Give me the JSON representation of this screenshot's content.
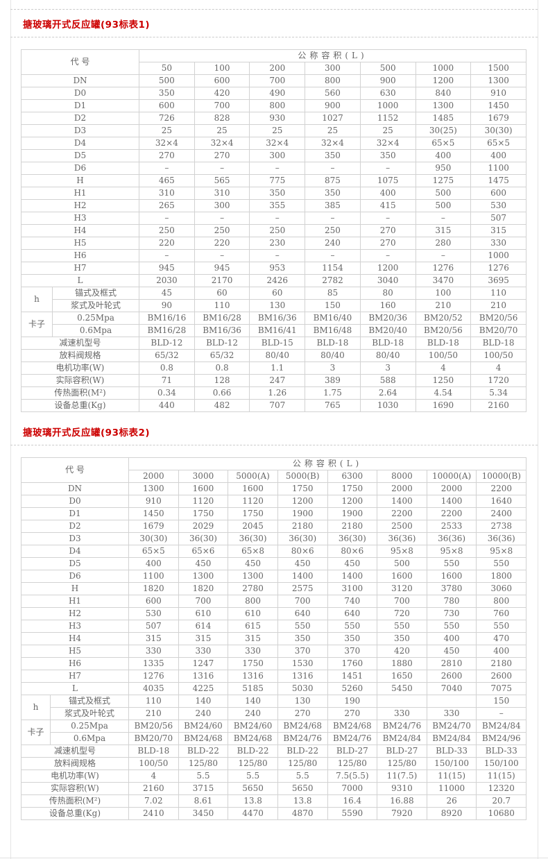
{
  "page": {
    "accent_red": "#cc0000",
    "grid_border": "#d2d2d2",
    "text_color": "#666666",
    "background": "#ffffff"
  },
  "tables": [
    {
      "title": "搪玻璃开式反应罐(93标表1)",
      "code_header": "代 号",
      "capacity_header": "公称容积(L)",
      "capacities": [
        "50",
        "100",
        "200",
        "300",
        "500",
        "1000",
        "1500"
      ],
      "rows": [
        {
          "label": "DN",
          "values": [
            "500",
            "600",
            "700",
            "800",
            "900",
            "1200",
            "1300"
          ]
        },
        {
          "label": "D0",
          "values": [
            "350",
            "420",
            "490",
            "560",
            "630",
            "840",
            "910"
          ]
        },
        {
          "label": "D1",
          "values": [
            "600",
            "700",
            "800",
            "900",
            "1000",
            "1300",
            "1450"
          ]
        },
        {
          "label": "D2",
          "values": [
            "726",
            "828",
            "930",
            "1027",
            "1152",
            "1485",
            "1679"
          ]
        },
        {
          "label": "D3",
          "values": [
            "25",
            "25",
            "25",
            "25",
            "25",
            "30(25)",
            "30(30)"
          ]
        },
        {
          "label": "D4",
          "values": [
            "32×4",
            "32×4",
            "32×4",
            "32×4",
            "32×4",
            "65×5",
            "65×5"
          ]
        },
        {
          "label": "D5",
          "values": [
            "270",
            "270",
            "300",
            "350",
            "350",
            "400",
            "400"
          ]
        },
        {
          "label": "D6",
          "values": [
            "–",
            "–",
            "–",
            "–",
            "–",
            "950",
            "1100"
          ]
        },
        {
          "label": "H",
          "values": [
            "465",
            "565",
            "775",
            "875",
            "1075",
            "1275",
            "1475"
          ]
        },
        {
          "label": "H1",
          "values": [
            "310",
            "310",
            "350",
            "350",
            "400",
            "500",
            "600"
          ]
        },
        {
          "label": "H2",
          "values": [
            "265",
            "300",
            "355",
            "385",
            "415",
            "500",
            "530"
          ]
        },
        {
          "label": "H3",
          "values": [
            "–",
            "–",
            "–",
            "–",
            "–",
            "–",
            "507"
          ]
        },
        {
          "label": "H4",
          "values": [
            "250",
            "250",
            "250",
            "250",
            "270",
            "315",
            "315"
          ]
        },
        {
          "label": "H5",
          "values": [
            "220",
            "220",
            "230",
            "240",
            "270",
            "280",
            "330"
          ]
        },
        {
          "label": "H6",
          "values": [
            "–",
            "–",
            "–",
            "–",
            "–",
            "–",
            "1000"
          ]
        },
        {
          "label": "H7",
          "values": [
            "945",
            "945",
            "953",
            "1154",
            "1200",
            "1276",
            "1276"
          ]
        },
        {
          "label": "L",
          "values": [
            "2030",
            "2170",
            "2426",
            "2782",
            "3040",
            "3470",
            "3695"
          ]
        },
        {
          "group": "h",
          "group_first": true,
          "label": "锚式及框式",
          "values": [
            "45",
            "60",
            "60",
            "85",
            "80",
            "100",
            "110"
          ]
        },
        {
          "group": "h",
          "label": "浆式及叶轮式",
          "values": [
            "90",
            "110",
            "130",
            "150",
            "160",
            "210",
            "210"
          ]
        },
        {
          "group": "卡子",
          "group_first": true,
          "label": "0.25Mpa",
          "values": [
            "BM16/16",
            "BM16/28",
            "BM16/36",
            "BM16/40",
            "BM20/36",
            "BM20/52",
            "BM20/56"
          ]
        },
        {
          "group": "卡子",
          "label": "0.6Mpa",
          "values": [
            "BM16/28",
            "BM16/36",
            "BM16/41",
            "BM16/48",
            "BM20/40",
            "BM20/56",
            "BM20/70"
          ]
        },
        {
          "label": "减速机型号",
          "values": [
            "BLD-12",
            "BLD-12",
            "BLD-15",
            "BLD-18",
            "BLD-18",
            "BLD-18",
            "BLD-18"
          ]
        },
        {
          "label": "放料阀规格",
          "values": [
            "65/32",
            "65/32",
            "80/40",
            "80/40",
            "80/40",
            "100/50",
            "100/50"
          ]
        },
        {
          "label": "电机功率(W)",
          "values": [
            "0.8",
            "0.8",
            "1.1",
            "3",
            "3",
            "4",
            "4"
          ]
        },
        {
          "label": "实际容积(W)",
          "values": [
            "71",
            "128",
            "247",
            "389",
            "588",
            "1250",
            "1720"
          ]
        },
        {
          "label": "传热面积(M²)",
          "values": [
            "0.34",
            "0.66",
            "1.26",
            "1.75",
            "2.64",
            "4.54",
            "5.34"
          ]
        },
        {
          "label": "设备总重(Kg)",
          "values": [
            "440",
            "482",
            "707",
            "765",
            "1030",
            "1690",
            "2160"
          ]
        }
      ]
    },
    {
      "title": "搪玻璃开式反应罐(93标表2)",
      "code_header": "代 号",
      "capacity_header": "公称容积(L)",
      "capacities": [
        "2000",
        "3000",
        "5000(A)",
        "5000(B)",
        "6300",
        "8000",
        "10000(A)",
        "10000(B)"
      ],
      "rows": [
        {
          "label": "DN",
          "values": [
            "1300",
            "1600",
            "1600",
            "1750",
            "1750",
            "2000",
            "2000",
            "2200"
          ]
        },
        {
          "label": "D0",
          "values": [
            "910",
            "1120",
            "1120",
            "1200",
            "1200",
            "1400",
            "1400",
            "1640"
          ]
        },
        {
          "label": "D1",
          "values": [
            "1450",
            "1750",
            "1750",
            "1900",
            "1900",
            "2200",
            "2200",
            "2400"
          ]
        },
        {
          "label": "D2",
          "values": [
            "1679",
            "2029",
            "2045",
            "2180",
            "2180",
            "2500",
            "2533",
            "2738"
          ]
        },
        {
          "label": "D3",
          "values": [
            "30(30)",
            "36(30)",
            "36(30)",
            "36(30)",
            "36(30)",
            "36(36)",
            "36(36)",
            "36(36)"
          ]
        },
        {
          "label": "D4",
          "values": [
            "65×5",
            "65×6",
            "65×8",
            "80×6",
            "80×6",
            "95×8",
            "95×8",
            "95×8"
          ]
        },
        {
          "label": "D5",
          "values": [
            "400",
            "450",
            "450",
            "450",
            "450",
            "500",
            "550",
            "550"
          ]
        },
        {
          "label": "D6",
          "values": [
            "1100",
            "1300",
            "1300",
            "1400",
            "1400",
            "1600",
            "1600",
            "1800"
          ]
        },
        {
          "label": "H",
          "values": [
            "1820",
            "1820",
            "2780",
            "2575",
            "3100",
            "3120",
            "3780",
            "3060"
          ]
        },
        {
          "label": "H1",
          "values": [
            "600",
            "700",
            "800",
            "700",
            "740",
            "700",
            "780",
            "800"
          ]
        },
        {
          "label": "H2",
          "values": [
            "530",
            "610",
            "610",
            "640",
            "640",
            "720",
            "730",
            "760"
          ]
        },
        {
          "label": "H3",
          "values": [
            "507",
            "614",
            "615",
            "550",
            "550",
            "550",
            "550",
            "550"
          ]
        },
        {
          "label": "H4",
          "values": [
            "315",
            "315",
            "315",
            "350",
            "350",
            "350",
            "400",
            "470"
          ]
        },
        {
          "label": "H5",
          "values": [
            "330",
            "330",
            "330",
            "370",
            "370",
            "420",
            "450",
            "400"
          ]
        },
        {
          "label": "H6",
          "values": [
            "1335",
            "1247",
            "1750",
            "1530",
            "1760",
            "1880",
            "2810",
            "2180"
          ]
        },
        {
          "label": "H7",
          "values": [
            "1276",
            "1316",
            "1316",
            "1316",
            "1451",
            "1650",
            "2600",
            "2600"
          ]
        },
        {
          "label": "L",
          "values": [
            "4035",
            "4225",
            "5185",
            "5030",
            "5260",
            "5450",
            "7040",
            "7075"
          ]
        },
        {
          "group": "h",
          "group_first": true,
          "label": "锚式及框式",
          "values": [
            "110",
            "140",
            "140",
            "130",
            "190",
            "",
            "",
            "150"
          ]
        },
        {
          "group": "h",
          "label": "浆式及叶轮式",
          "values": [
            "210",
            "240",
            "240",
            "270",
            "270",
            "330",
            "330",
            "–"
          ]
        },
        {
          "group": "卡子",
          "group_first": true,
          "label": "0.25Mpa",
          "values": [
            "BM20/56",
            "BM24/60",
            "BM24/60",
            "BM24/68",
            "BM24/68",
            "BM24/76",
            "BM24/70",
            "BM24/84"
          ]
        },
        {
          "group": "卡子",
          "label": "0.6Mpa",
          "values": [
            "BM20/70",
            "BM24/68",
            "BM24/68",
            "BM24/76",
            "BM24/76",
            "BM24/84",
            "BM24/84",
            "BM24/96"
          ]
        },
        {
          "label": "减速机型号",
          "values": [
            "BLD-18",
            "BLD-22",
            "BLD-22",
            "BLD-22",
            "BLD-27",
            "BLD-27",
            "BLD-33",
            "BLD-33"
          ]
        },
        {
          "label": "放料阀规格",
          "values": [
            "100/50",
            "125/80",
            "125/80",
            "125/80",
            "125/80",
            "125/80",
            "150/100",
            "150/100"
          ]
        },
        {
          "label": "电机功率(W)",
          "values": [
            "4",
            "5.5",
            "5.5",
            "5.5",
            "7.5(5.5)",
            "11(7.5)",
            "11(15)",
            "11(15)"
          ]
        },
        {
          "label": "实际容积(W)",
          "values": [
            "2160",
            "3715",
            "5650",
            "5650",
            "7000",
            "9310",
            "11000",
            "12320"
          ]
        },
        {
          "label": "传热面积(M²)",
          "values": [
            "7.02",
            "8.61",
            "13.8",
            "13.8",
            "16.4",
            "16.88",
            "26",
            "20.7"
          ]
        },
        {
          "label": "设备总重(Kg)",
          "values": [
            "2410",
            "3450",
            "4470",
            "4870",
            "5590",
            "7920",
            "8920",
            "10680"
          ]
        }
      ]
    }
  ]
}
